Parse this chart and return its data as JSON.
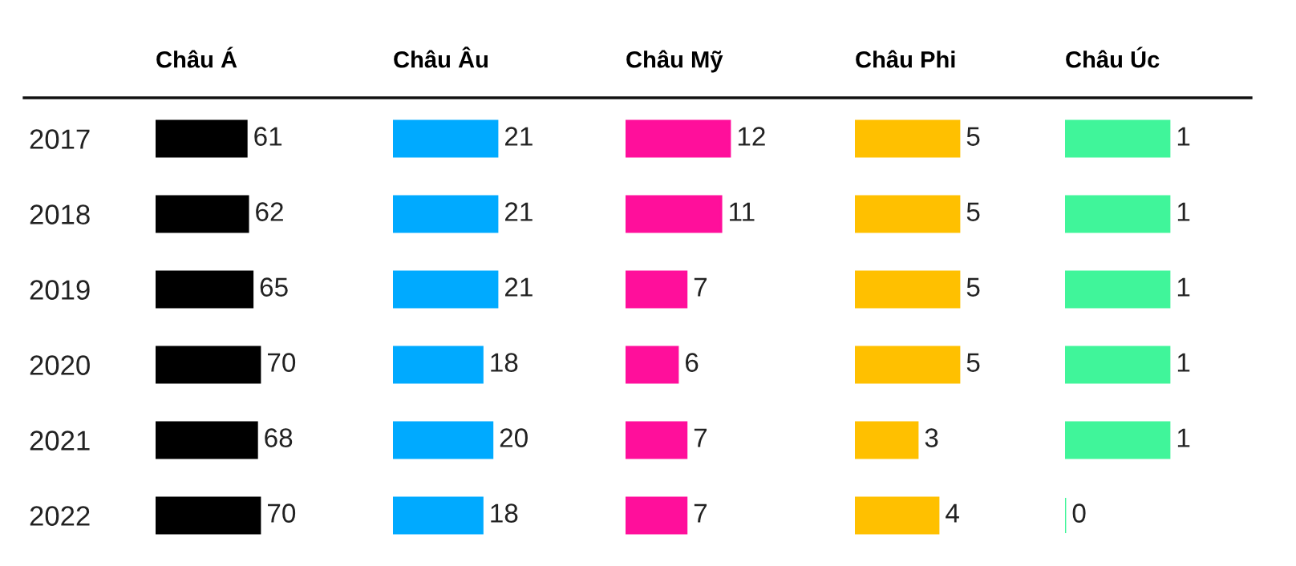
{
  "chart_data": [
    {
      "type": "bar",
      "orientation": "horizontal",
      "title": "Châu Á",
      "categories": [
        "2017",
        "2018",
        "2019",
        "2020",
        "2021",
        "2022"
      ],
      "values": [
        61,
        62,
        65,
        70,
        68,
        70
      ],
      "color": "#000000",
      "data_labels": true,
      "tick_labels": "y"
    },
    {
      "type": "bar",
      "orientation": "horizontal",
      "title": "Châu Âu",
      "categories": [
        "2017",
        "2018",
        "2019",
        "2020",
        "2021",
        "2022"
      ],
      "values": [
        21,
        21,
        21,
        18,
        20,
        18
      ],
      "color": "#00aaff",
      "data_labels": true,
      "tick_labels": false
    },
    {
      "type": "bar",
      "orientation": "horizontal",
      "title": "Châu Mỹ",
      "categories": [
        "2017",
        "2018",
        "2019",
        "2020",
        "2021",
        "2022"
      ],
      "values": [
        12,
        11,
        7,
        6,
        7,
        7
      ],
      "color": "#ff0f9b",
      "data_labels": true,
      "tick_labels": false
    },
    {
      "type": "bar",
      "orientation": "horizontal",
      "title": "Châu Phi",
      "categories": [
        "2017",
        "2018",
        "2019",
        "2020",
        "2021",
        "2022"
      ],
      "values": [
        5,
        5,
        5,
        5,
        3,
        4
      ],
      "color": "#ffc000",
      "data_labels": true,
      "tick_labels": false
    },
    {
      "type": "bar",
      "orientation": "horizontal",
      "title": "Châu Úc",
      "categories": [
        "2017",
        "2018",
        "2019",
        "2020",
        "2021",
        "2022"
      ],
      "values": [
        1,
        1,
        1,
        1,
        1,
        0
      ],
      "color": "#40f59a",
      "data_labels": true,
      "tick_labels": false
    }
  ]
}
